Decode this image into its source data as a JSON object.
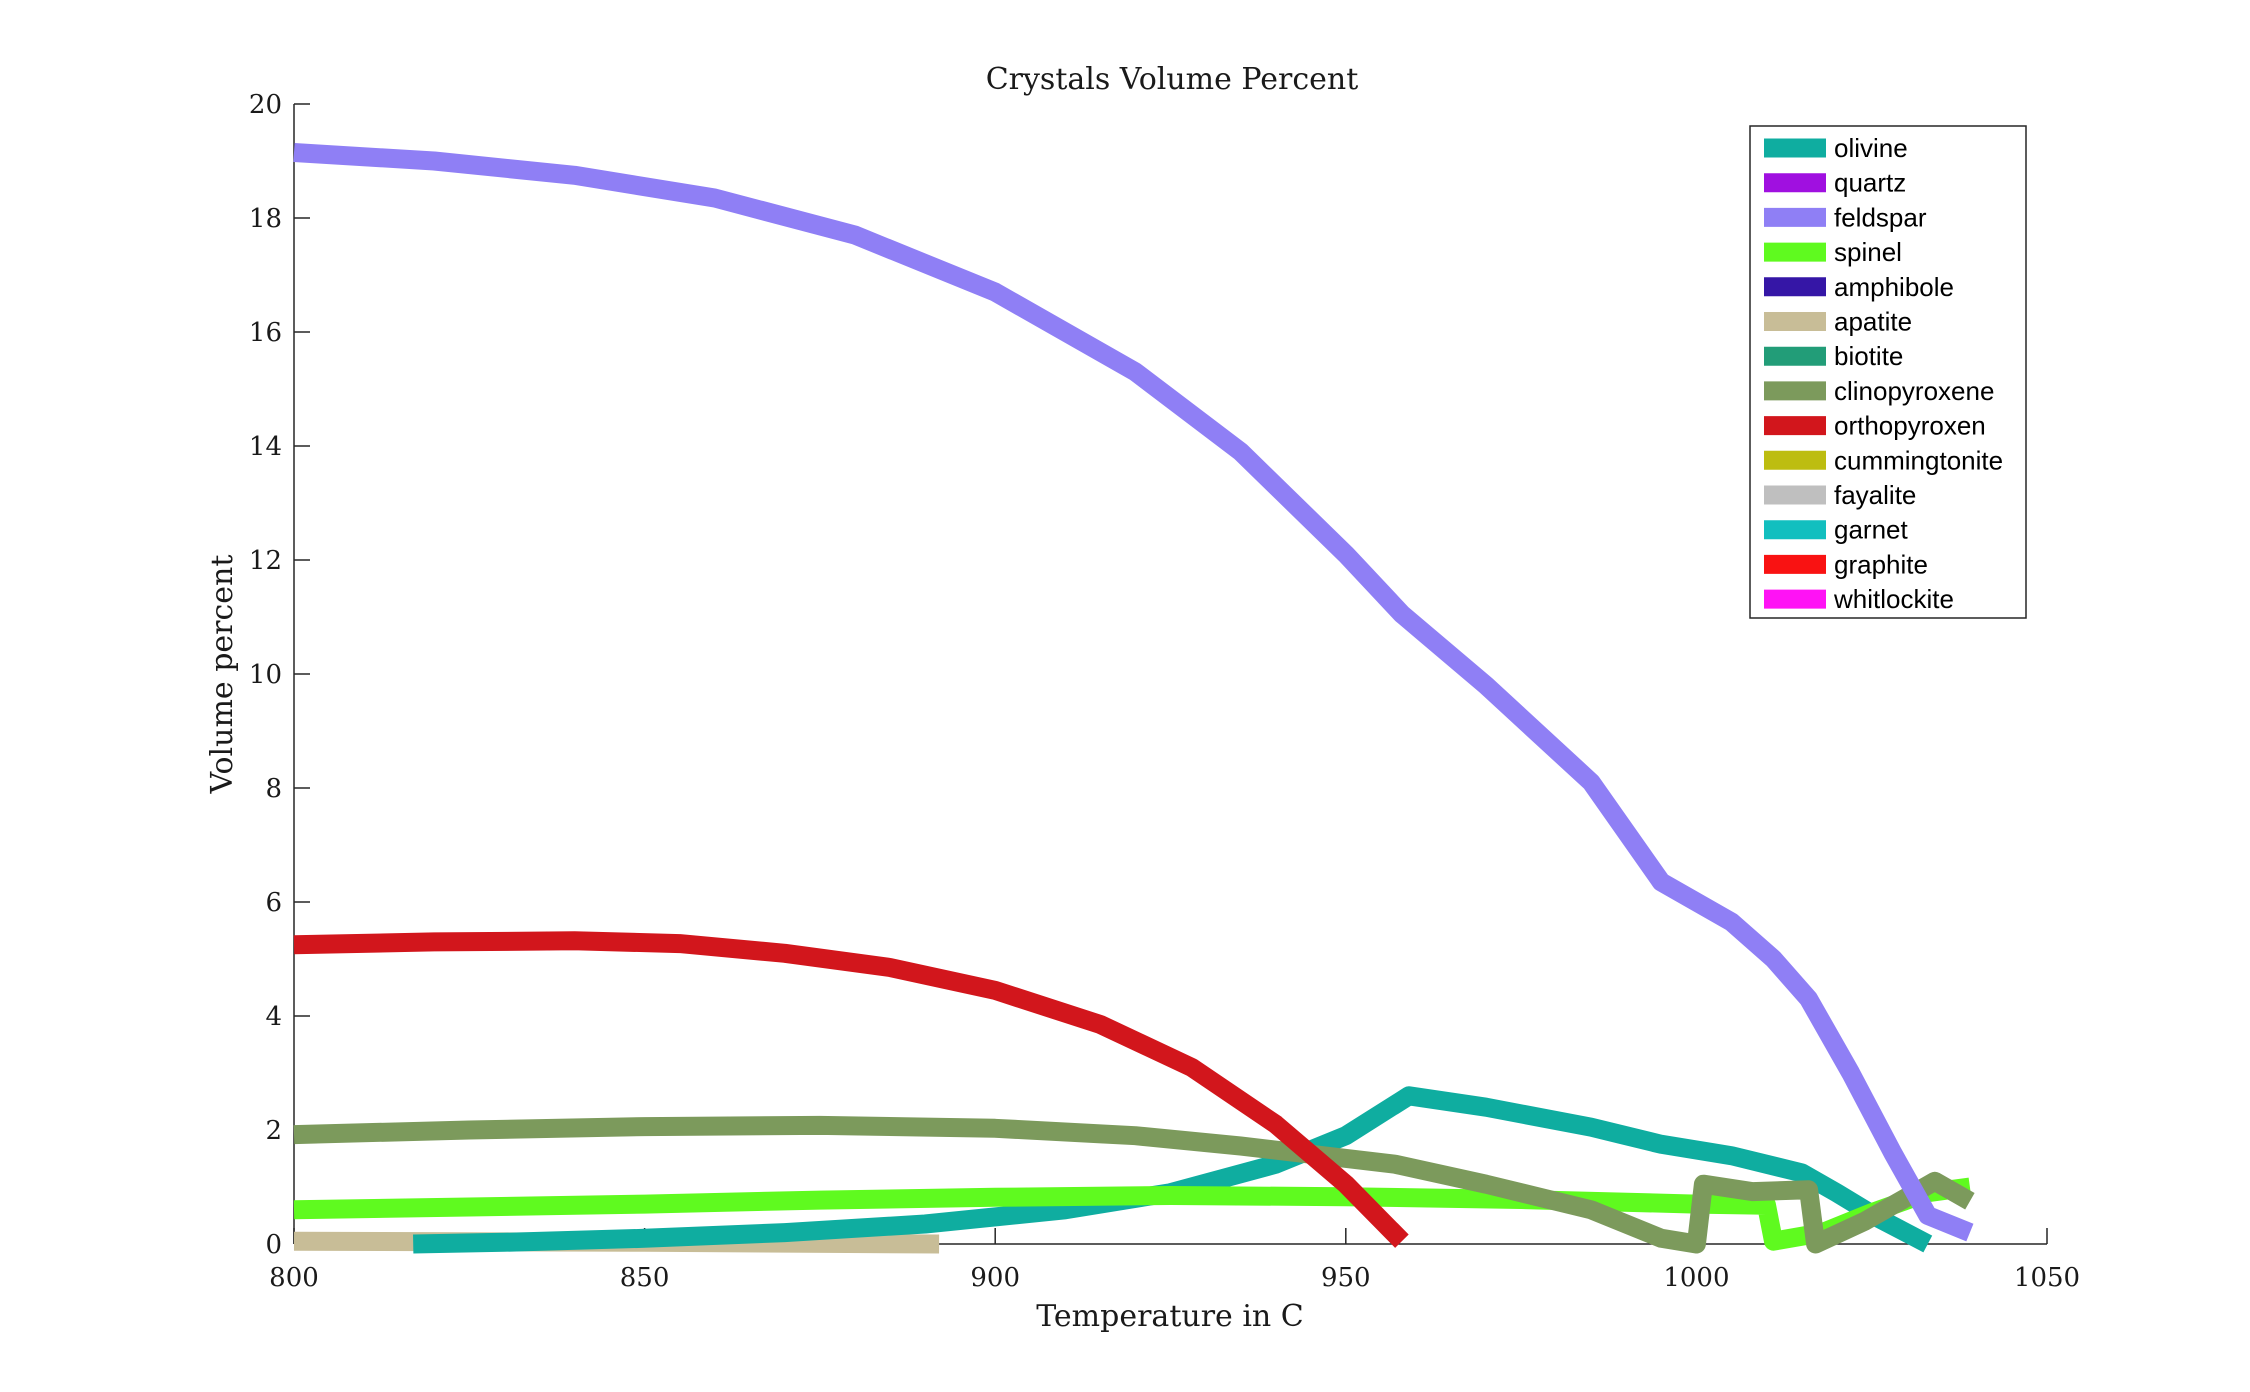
{
  "chart_data": {
    "type": "line",
    "title": "Crystals Volume Percent",
    "xlabel": "Temperature in C",
    "ylabel": "Volume percent",
    "xlim": [
      800,
      1050
    ],
    "ylim": [
      0,
      20
    ],
    "xticks": [
      800,
      850,
      900,
      950,
      1000,
      1050
    ],
    "yticks": [
      0,
      2,
      4,
      6,
      8,
      10,
      12,
      14,
      16,
      18,
      20
    ],
    "grid": false,
    "legend_position": "top-right",
    "series": [
      {
        "name": "olivine",
        "color": "#0fada0",
        "points": [
          [
            817,
            0.0
          ],
          [
            830,
            0.03
          ],
          [
            850,
            0.1
          ],
          [
            870,
            0.2
          ],
          [
            890,
            0.35
          ],
          [
            910,
            0.6
          ],
          [
            925,
            0.9
          ],
          [
            940,
            1.4
          ],
          [
            950,
            1.9
          ],
          [
            959,
            2.6
          ],
          [
            970,
            2.4
          ],
          [
            985,
            2.05
          ],
          [
            995,
            1.75
          ],
          [
            1005,
            1.55
          ],
          [
            1015,
            1.25
          ],
          [
            1020,
            0.9
          ],
          [
            1026,
            0.45
          ],
          [
            1033,
            0.0
          ]
        ]
      },
      {
        "name": "quartz",
        "color": "#a010e0",
        "points": []
      },
      {
        "name": "feldspar",
        "color": "#8f7ff5",
        "points": [
          [
            800,
            19.15
          ],
          [
            820,
            19.0
          ],
          [
            840,
            18.75
          ],
          [
            860,
            18.35
          ],
          [
            880,
            17.7
          ],
          [
            900,
            16.7
          ],
          [
            920,
            15.3
          ],
          [
            935,
            13.9
          ],
          [
            950,
            12.1
          ],
          [
            958,
            11.05
          ],
          [
            970,
            9.8
          ],
          [
            985,
            8.1
          ],
          [
            995,
            6.35
          ],
          [
            1005,
            5.65
          ],
          [
            1011,
            5.0
          ],
          [
            1016,
            4.3
          ],
          [
            1022,
            3.0
          ],
          [
            1028,
            1.6
          ],
          [
            1033,
            0.5
          ],
          [
            1039,
            0.2
          ]
        ]
      },
      {
        "name": "spinel",
        "color": "#5ffa1f",
        "points": [
          [
            800,
            0.6
          ],
          [
            825,
            0.65
          ],
          [
            850,
            0.7
          ],
          [
            875,
            0.77
          ],
          [
            900,
            0.82
          ],
          [
            925,
            0.85
          ],
          [
            950,
            0.83
          ],
          [
            975,
            0.78
          ],
          [
            1000,
            0.7
          ],
          [
            1010,
            0.68
          ],
          [
            1011,
            0.05
          ],
          [
            1018,
            0.2
          ],
          [
            1025,
            0.55
          ],
          [
            1033,
            0.9
          ],
          [
            1039,
            1.0
          ]
        ]
      },
      {
        "name": "amphibole",
        "color": "#3516a6",
        "points": []
      },
      {
        "name": "apatite",
        "color": "#c8bd97",
        "points": [
          [
            800,
            0.05
          ],
          [
            850,
            0.03
          ],
          [
            892,
            0.0
          ]
        ]
      },
      {
        "name": "biotite",
        "color": "#229d78",
        "points": []
      },
      {
        "name": "clinopyroxene",
        "color": "#7c9a5c",
        "points": [
          [
            800,
            1.92
          ],
          [
            825,
            2.0
          ],
          [
            850,
            2.06
          ],
          [
            875,
            2.08
          ],
          [
            900,
            2.03
          ],
          [
            920,
            1.9
          ],
          [
            935,
            1.72
          ],
          [
            957,
            1.4
          ],
          [
            970,
            1.05
          ],
          [
            985,
            0.6
          ],
          [
            995,
            0.1
          ],
          [
            1000,
            0.0
          ],
          [
            1001,
            1.05
          ],
          [
            1008,
            0.92
          ],
          [
            1016,
            0.95
          ],
          [
            1017,
            0.0
          ],
          [
            1024,
            0.4
          ],
          [
            1034,
            1.1
          ],
          [
            1039,
            0.75
          ]
        ]
      },
      {
        "name": "orthopyroxen",
        "color": "#d2161c",
        "points": [
          [
            800,
            5.25
          ],
          [
            820,
            5.3
          ],
          [
            840,
            5.32
          ],
          [
            855,
            5.27
          ],
          [
            870,
            5.1
          ],
          [
            885,
            4.85
          ],
          [
            900,
            4.45
          ],
          [
            915,
            3.85
          ],
          [
            928,
            3.1
          ],
          [
            940,
            2.1
          ],
          [
            950,
            1.05
          ],
          [
            958,
            0.05
          ]
        ]
      },
      {
        "name": "cummingtonite",
        "color": "#bdbd10",
        "points": []
      },
      {
        "name": "fayalite",
        "color": "#bfbfbf",
        "points": []
      },
      {
        "name": "garnet",
        "color": "#12bfbf",
        "points": []
      },
      {
        "name": "graphite",
        "color": "#f91212",
        "points": []
      },
      {
        "name": "whitlockite",
        "color": "#ff12f5",
        "points": []
      }
    ]
  }
}
